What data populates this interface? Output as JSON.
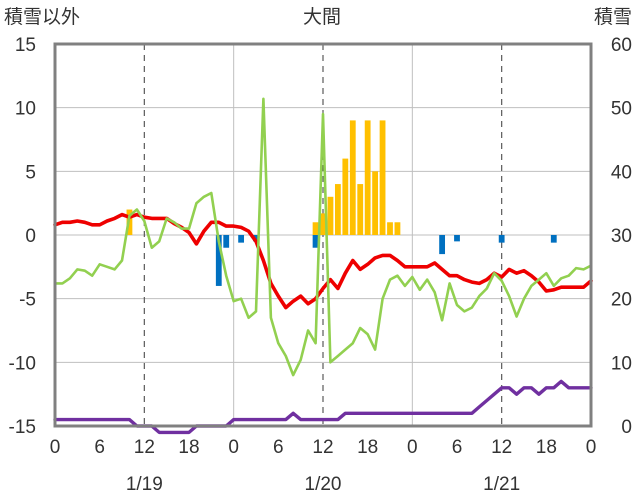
{
  "chart_data": {
    "type": "combo",
    "title": "大間",
    "left_axis_label": "積雪以外",
    "right_axis_label": "積雪",
    "left_ylim": [
      -15,
      15
    ],
    "left_ticks": [
      "-15",
      "-10",
      "-5",
      "0",
      "5",
      "10",
      "15"
    ],
    "right_ylim": [
      0,
      60
    ],
    "right_ticks": [
      "0",
      "10",
      "20",
      "30",
      "40",
      "50",
      "60"
    ],
    "x_hours": [
      0,
      72
    ],
    "x_tick_labels": [
      "0",
      "6",
      "12",
      "18",
      "0",
      "6",
      "12",
      "18",
      "0",
      "6",
      "12",
      "18",
      "0"
    ],
    "day_labels": [
      {
        "label": "1/19",
        "hour": 12
      },
      {
        "label": "1/20",
        "hour": 36
      },
      {
        "label": "1/21",
        "hour": 60
      }
    ],
    "grid": "dashed verticals at 12 h, solid day separators",
    "colors": {
      "temperature": "#ee0000",
      "green": "#92d050",
      "snow_depth": "#7030a0",
      "snowfall": "#ffc000",
      "precip_negative": "#0070c0"
    },
    "series": [
      {
        "key": "temperature",
        "axis": "left",
        "kind": "line",
        "points": [
          [
            0,
            0.8
          ],
          [
            1,
            1.0
          ],
          [
            2,
            1.0
          ],
          [
            3,
            1.1
          ],
          [
            4,
            1.0
          ],
          [
            5,
            0.8
          ],
          [
            6,
            0.8
          ],
          [
            7,
            1.1
          ],
          [
            8,
            1.3
          ],
          [
            9,
            1.6
          ],
          [
            10,
            1.4
          ],
          [
            11,
            1.6
          ],
          [
            12,
            1.4
          ],
          [
            13,
            1.3
          ],
          [
            14,
            1.3
          ],
          [
            15,
            1.3
          ],
          [
            16,
            0.9
          ],
          [
            17,
            0.6
          ],
          [
            18,
            0.2
          ],
          [
            19,
            -0.7
          ],
          [
            20,
            0.3
          ],
          [
            21,
            1.0
          ],
          [
            22,
            1.0
          ],
          [
            23,
            0.7
          ],
          [
            24,
            0.7
          ],
          [
            25,
            0.6
          ],
          [
            26,
            0.3
          ],
          [
            27,
            -0.5
          ],
          [
            28,
            -2.0
          ],
          [
            29,
            -3.8
          ],
          [
            30,
            -4.8
          ],
          [
            31,
            -5.7
          ],
          [
            32,
            -5.2
          ],
          [
            33,
            -4.8
          ],
          [
            34,
            -5.4
          ],
          [
            35,
            -5.0
          ],
          [
            36,
            -4.2
          ],
          [
            37,
            -3.5
          ],
          [
            38,
            -4.2
          ],
          [
            39,
            -3.0
          ],
          [
            40,
            -2.0
          ],
          [
            41,
            -2.7
          ],
          [
            42,
            -2.3
          ],
          [
            43,
            -1.8
          ],
          [
            44,
            -1.6
          ],
          [
            45,
            -1.6
          ],
          [
            46,
            -2.0
          ],
          [
            47,
            -2.5
          ],
          [
            48,
            -2.5
          ],
          [
            49,
            -2.5
          ],
          [
            50,
            -2.5
          ],
          [
            51,
            -2.2
          ],
          [
            52,
            -2.7
          ],
          [
            53,
            -3.2
          ],
          [
            54,
            -3.2
          ],
          [
            55,
            -3.5
          ],
          [
            56,
            -3.7
          ],
          [
            57,
            -3.8
          ],
          [
            58,
            -3.5
          ],
          [
            59,
            -3.0
          ],
          [
            60,
            -3.3
          ],
          [
            61,
            -2.7
          ],
          [
            62,
            -3.0
          ],
          [
            63,
            -2.8
          ],
          [
            64,
            -3.2
          ],
          [
            65,
            -3.7
          ],
          [
            66,
            -4.4
          ],
          [
            67,
            -4.3
          ],
          [
            68,
            -4.1
          ],
          [
            69,
            -4.1
          ],
          [
            70,
            -4.1
          ],
          [
            71,
            -4.1
          ],
          [
            72,
            -3.6
          ]
        ]
      },
      {
        "key": "green",
        "axis": "left",
        "kind": "line",
        "points": [
          [
            0,
            -3.8
          ],
          [
            1,
            -3.8
          ],
          [
            2,
            -3.4
          ],
          [
            3,
            -2.7
          ],
          [
            4,
            -2.8
          ],
          [
            5,
            -3.2
          ],
          [
            6,
            -2.3
          ],
          [
            7,
            -2.5
          ],
          [
            8,
            -2.7
          ],
          [
            9,
            -2.0
          ],
          [
            10,
            1.5
          ],
          [
            11,
            2.0
          ],
          [
            12,
            1.1
          ],
          [
            13,
            -1.0
          ],
          [
            14,
            -0.5
          ],
          [
            15,
            1.3
          ],
          [
            16,
            1.0
          ],
          [
            17,
            0.5
          ],
          [
            18,
            0.5
          ],
          [
            19,
            2.5
          ],
          [
            20,
            3.0
          ],
          [
            21,
            3.3
          ],
          [
            22,
            -0.5
          ],
          [
            23,
            -3.2
          ],
          [
            24,
            -5.2
          ],
          [
            25,
            -5.0
          ],
          [
            26,
            -6.5
          ],
          [
            27,
            -6.0
          ],
          [
            28,
            10.7
          ],
          [
            29,
            -6.5
          ],
          [
            30,
            -8.5
          ],
          [
            31,
            -9.5
          ],
          [
            32,
            -11.0
          ],
          [
            33,
            -9.8
          ],
          [
            34,
            -7.5
          ],
          [
            35,
            -8.5
          ],
          [
            36,
            9.5
          ],
          [
            37,
            -10.0
          ],
          [
            38,
            -9.5
          ],
          [
            39,
            -9.0
          ],
          [
            40,
            -8.5
          ],
          [
            41,
            -7.3
          ],
          [
            42,
            -7.8
          ],
          [
            43,
            -9.0
          ],
          [
            44,
            -5.0
          ],
          [
            45,
            -3.5
          ],
          [
            46,
            -3.2
          ],
          [
            47,
            -4.0
          ],
          [
            48,
            -3.3
          ],
          [
            49,
            -4.3
          ],
          [
            50,
            -3.5
          ],
          [
            51,
            -4.5
          ],
          [
            52,
            -6.7
          ],
          [
            53,
            -3.8
          ],
          [
            54,
            -5.5
          ],
          [
            55,
            -6.0
          ],
          [
            56,
            -5.7
          ],
          [
            57,
            -4.8
          ],
          [
            58,
            -4.2
          ],
          [
            59,
            -3.0
          ],
          [
            60,
            -3.6
          ],
          [
            61,
            -4.8
          ],
          [
            62,
            -6.4
          ],
          [
            63,
            -5.0
          ],
          [
            64,
            -4.0
          ],
          [
            65,
            -3.5
          ],
          [
            66,
            -3.0
          ],
          [
            67,
            -4.0
          ],
          [
            68,
            -3.4
          ],
          [
            69,
            -3.2
          ],
          [
            70,
            -2.6
          ],
          [
            71,
            -2.7
          ],
          [
            72,
            -2.4
          ]
        ]
      },
      {
        "key": "snow_depth",
        "axis": "right",
        "kind": "line",
        "points": [
          [
            0,
            1
          ],
          [
            1,
            1
          ],
          [
            2,
            1
          ],
          [
            3,
            1
          ],
          [
            4,
            1
          ],
          [
            5,
            1
          ],
          [
            6,
            1
          ],
          [
            7,
            1
          ],
          [
            8,
            1
          ],
          [
            9,
            1
          ],
          [
            10,
            1
          ],
          [
            11,
            0
          ],
          [
            12,
            0
          ],
          [
            13,
            0
          ],
          [
            14,
            -1
          ],
          [
            15,
            -1
          ],
          [
            16,
            -1
          ],
          [
            17,
            -1
          ],
          [
            18,
            -1
          ],
          [
            19,
            0
          ],
          [
            20,
            0
          ],
          [
            21,
            0
          ],
          [
            22,
            0
          ],
          [
            23,
            0
          ],
          [
            24,
            1
          ],
          [
            25,
            1
          ],
          [
            26,
            1
          ],
          [
            27,
            1
          ],
          [
            28,
            1
          ],
          [
            29,
            1
          ],
          [
            30,
            1
          ],
          [
            31,
            1
          ],
          [
            32,
            2
          ],
          [
            33,
            1
          ],
          [
            34,
            1
          ],
          [
            35,
            1
          ],
          [
            36,
            1
          ],
          [
            37,
            1
          ],
          [
            38,
            1
          ],
          [
            39,
            2
          ],
          [
            40,
            2
          ],
          [
            41,
            2
          ],
          [
            42,
            2
          ],
          [
            43,
            2
          ],
          [
            44,
            2
          ],
          [
            45,
            2
          ],
          [
            46,
            2
          ],
          [
            47,
            2
          ],
          [
            48,
            2
          ],
          [
            49,
            2
          ],
          [
            50,
            2
          ],
          [
            51,
            2
          ],
          [
            52,
            2
          ],
          [
            53,
            2
          ],
          [
            54,
            2
          ],
          [
            55,
            2
          ],
          [
            56,
            2
          ],
          [
            57,
            3
          ],
          [
            58,
            4
          ],
          [
            59,
            5
          ],
          [
            60,
            6
          ],
          [
            61,
            6
          ],
          [
            62,
            5
          ],
          [
            63,
            6
          ],
          [
            64,
            6
          ],
          [
            65,
            5
          ],
          [
            66,
            6
          ],
          [
            67,
            6
          ],
          [
            68,
            7
          ],
          [
            69,
            6
          ],
          [
            70,
            6
          ],
          [
            71,
            6
          ],
          [
            72,
            6
          ]
        ]
      },
      {
        "key": "snowfall",
        "axis": "left",
        "kind": "bar",
        "points": [
          [
            10,
            2
          ],
          [
            35,
            1
          ],
          [
            36,
            1.7
          ],
          [
            37,
            3
          ],
          [
            38,
            4
          ],
          [
            39,
            6
          ],
          [
            40,
            9
          ],
          [
            41,
            4
          ],
          [
            42,
            9
          ],
          [
            43,
            5
          ],
          [
            44,
            9
          ],
          [
            45,
            1
          ],
          [
            46,
            1
          ]
        ]
      },
      {
        "key": "precip_negative",
        "axis": "left",
        "kind": "bar",
        "points": [
          [
            22,
            -4
          ],
          [
            23,
            -1
          ],
          [
            25,
            -0.6
          ],
          [
            27,
            -0.5
          ],
          [
            35,
            -1
          ],
          [
            52,
            -1.5
          ],
          [
            54,
            -0.5
          ],
          [
            60,
            -0.6
          ],
          [
            67,
            -0.6
          ]
        ]
      }
    ]
  }
}
